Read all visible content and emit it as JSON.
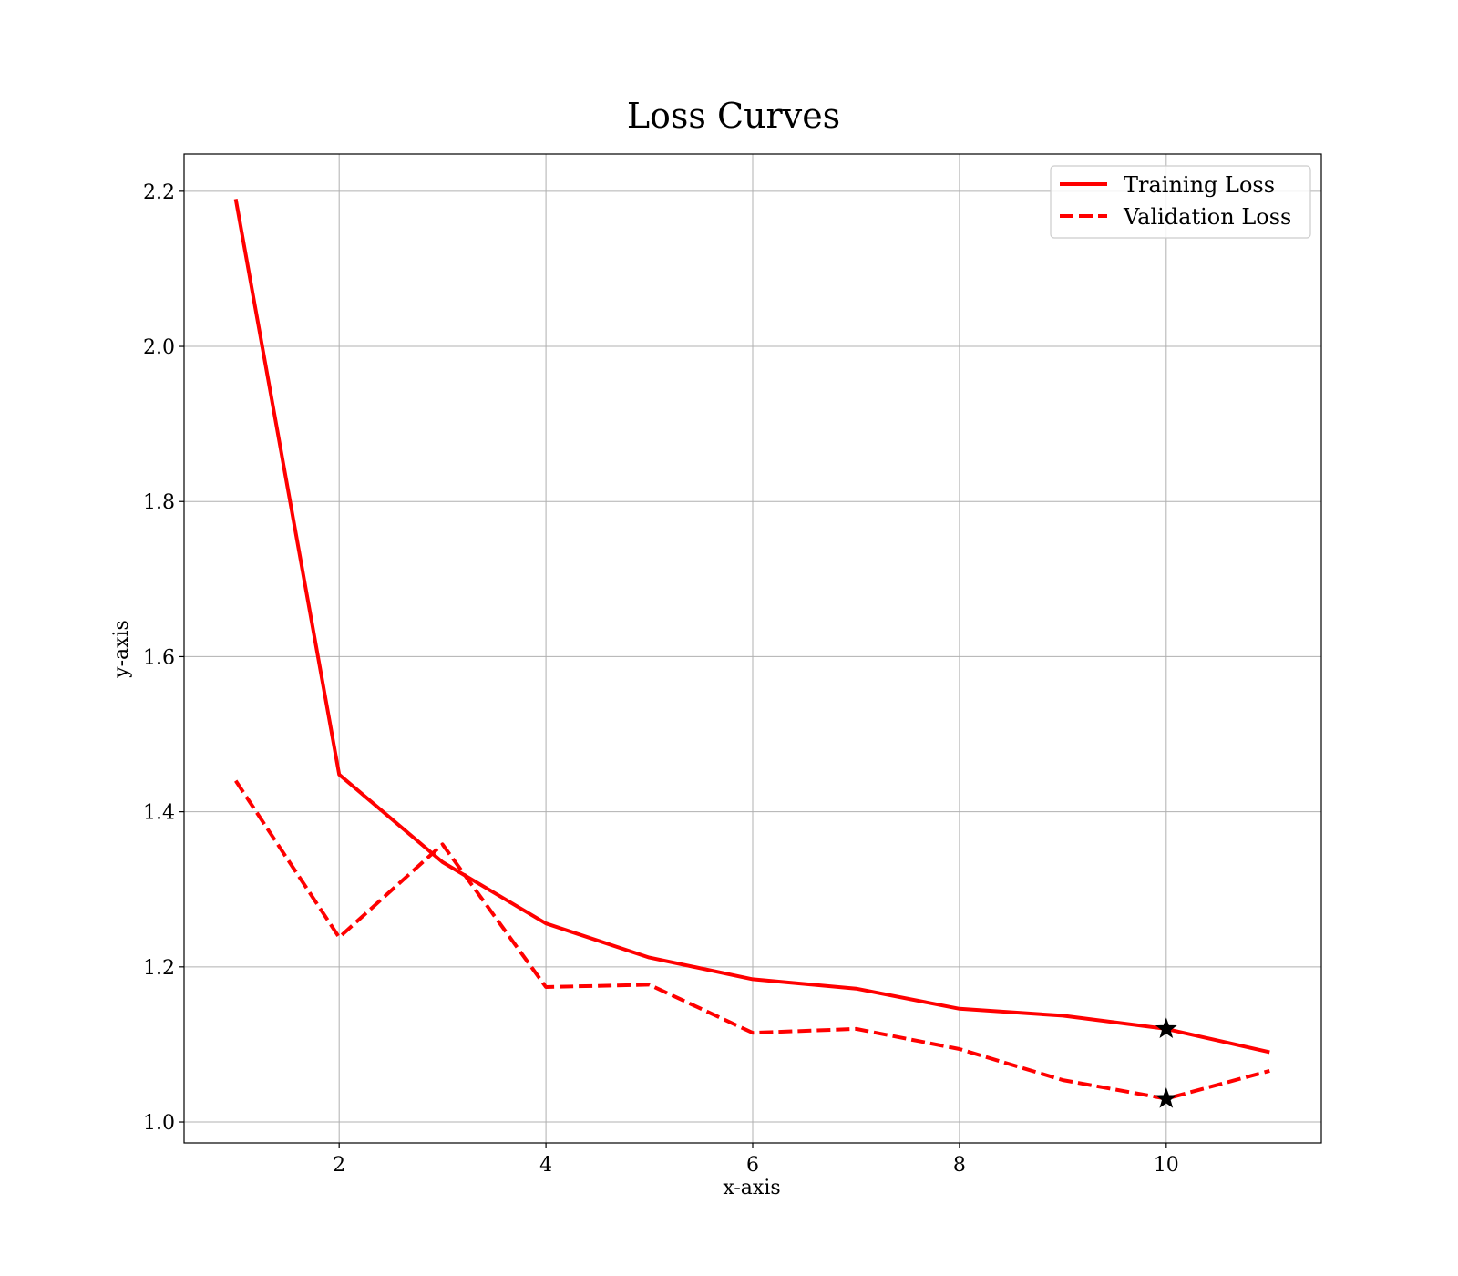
{
  "chart_data": {
    "type": "line",
    "title": "Loss Curves",
    "xlabel": "x-axis",
    "ylabel": "y-axis",
    "xlim": [
      0.5,
      11.5
    ],
    "ylim": [
      0.973,
      2.248
    ],
    "xticks": [
      2,
      4,
      6,
      8,
      10
    ],
    "yticks": [
      1.0,
      1.2,
      1.4,
      1.6,
      1.8,
      2.0,
      2.2
    ],
    "x_tick_labels": [
      "2",
      "4",
      "6",
      "8",
      "10"
    ],
    "y_tick_labels": [
      "1.0",
      "1.2",
      "1.4",
      "1.6",
      "1.8",
      "2.0",
      "2.2"
    ],
    "grid": true,
    "legend_position": "top-right",
    "x": [
      1,
      2,
      3,
      4,
      5,
      6,
      7,
      8,
      9,
      10,
      11
    ],
    "series": [
      {
        "name": "Training Loss",
        "style": "solid",
        "color": "#ff0000",
        "values": [
          2.19,
          1.448,
          1.335,
          1.256,
          1.212,
          1.184,
          1.172,
          1.146,
          1.137,
          1.12,
          1.09
        ]
      },
      {
        "name": "Validation Loss",
        "style": "dashed",
        "color": "#ff0000",
        "values": [
          1.44,
          1.238,
          1.358,
          1.174,
          1.177,
          1.115,
          1.12,
          1.094,
          1.054,
          1.03,
          1.066
        ]
      }
    ],
    "markers": [
      {
        "series": "Training Loss",
        "x": 10,
        "y": 1.12,
        "shape": "star",
        "color": "#000000"
      },
      {
        "series": "Validation Loss",
        "x": 10,
        "y": 1.03,
        "shape": "star",
        "color": "#000000"
      }
    ]
  }
}
